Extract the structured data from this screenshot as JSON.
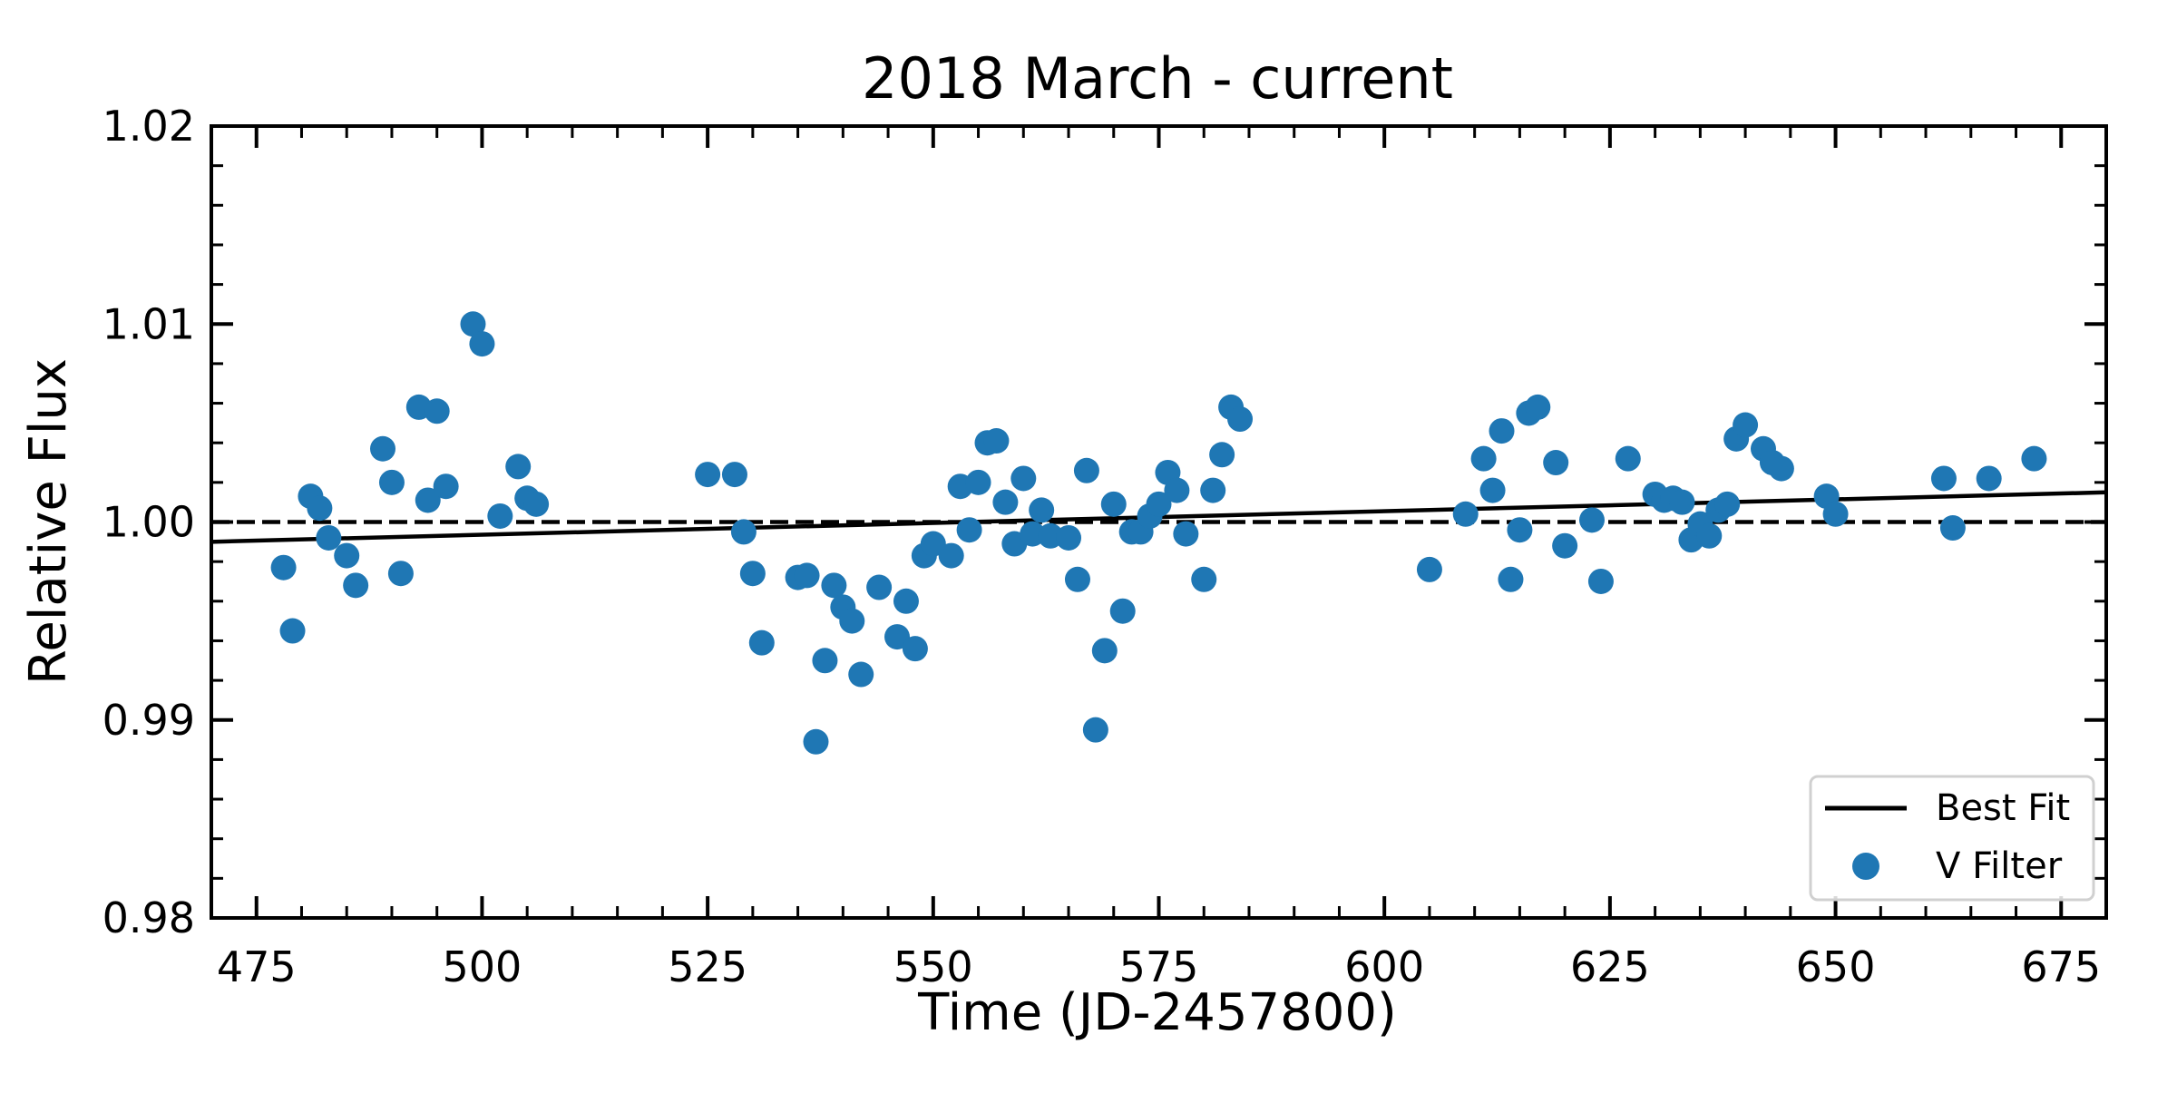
{
  "chart_data": {
    "type": "scatter",
    "title": "2018 March - current",
    "xlabel": "Time (JD-2457800)",
    "ylabel": "Relative Flux",
    "xlim": [
      470,
      680
    ],
    "ylim": [
      0.98,
      1.02
    ],
    "xticks": [
      475,
      500,
      525,
      550,
      575,
      600,
      625,
      650,
      675
    ],
    "xtick_labels": [
      "475",
      "500",
      "525",
      "550",
      "575",
      "600",
      "625",
      "650",
      "675"
    ],
    "yticks": [
      0.98,
      0.99,
      1.0,
      1.01,
      1.02
    ],
    "ytick_labels": [
      "0.98",
      "0.99",
      "1.00",
      "1.01",
      "1.02"
    ],
    "grid": false,
    "legend_position": "bottom-right",
    "reference_line": {
      "y": 1.0,
      "style": "dashed",
      "color": "#000000"
    },
    "series": [
      {
        "name": "Best Fit",
        "kind": "line",
        "color": "#000000",
        "x": [
          470,
          680
        ],
        "y": [
          0.999,
          1.0015
        ]
      },
      {
        "name": "V Filter",
        "kind": "scatter",
        "color": "#1f77b4",
        "points": [
          [
            478,
            0.9977
          ],
          [
            479,
            0.9945
          ],
          [
            481,
            1.0013
          ],
          [
            482,
            1.0007
          ],
          [
            483,
            0.9992
          ],
          [
            485,
            0.9983
          ],
          [
            486,
            0.9968
          ],
          [
            489,
            1.0037
          ],
          [
            490,
            1.002
          ],
          [
            491,
            0.9974
          ],
          [
            493,
            1.0058
          ],
          [
            494,
            1.0011
          ],
          [
            495,
            1.0056
          ],
          [
            496,
            1.0018
          ],
          [
            499,
            1.01
          ],
          [
            500,
            1.009
          ],
          [
            502,
            1.0003
          ],
          [
            504,
            1.0028
          ],
          [
            505,
            1.0012
          ],
          [
            506,
            1.0009
          ],
          [
            525,
            1.0024
          ],
          [
            528,
            1.0024
          ],
          [
            529,
            0.9995
          ],
          [
            530,
            0.9974
          ],
          [
            531,
            0.9939
          ],
          [
            535,
            0.9972
          ],
          [
            536,
            0.9973
          ],
          [
            537,
            0.9889
          ],
          [
            538,
            0.993
          ],
          [
            539,
            0.9968
          ],
          [
            540,
            0.9957
          ],
          [
            541,
            0.995
          ],
          [
            542,
            0.9923
          ],
          [
            544,
            0.9967
          ],
          [
            546,
            0.9942
          ],
          [
            547,
            0.996
          ],
          [
            548,
            0.9936
          ],
          [
            549,
            0.9983
          ],
          [
            550,
            0.9989
          ],
          [
            552,
            0.9983
          ],
          [
            553,
            1.0018
          ],
          [
            554,
            0.9996
          ],
          [
            555,
            1.002
          ],
          [
            556,
            1.004
          ],
          [
            557,
            1.0041
          ],
          [
            558,
            1.001
          ],
          [
            559,
            0.9989
          ],
          [
            560,
            1.0022
          ],
          [
            561,
            0.9994
          ],
          [
            562,
            1.0006
          ],
          [
            563,
            0.9993
          ],
          [
            565,
            0.9992
          ],
          [
            566,
            0.9971
          ],
          [
            567,
            1.0026
          ],
          [
            568,
            0.9895
          ],
          [
            569,
            0.9935
          ],
          [
            570,
            1.0009
          ],
          [
            571,
            0.9955
          ],
          [
            572,
            0.9995
          ],
          [
            573,
            0.9995
          ],
          [
            574,
            1.0003
          ],
          [
            575,
            1.0009
          ],
          [
            576,
            1.0025
          ],
          [
            577,
            1.0016
          ],
          [
            578,
            0.9994
          ],
          [
            580,
            0.9971
          ],
          [
            581,
            1.0016
          ],
          [
            582,
            1.0034
          ],
          [
            583,
            1.0058
          ],
          [
            584,
            1.0052
          ],
          [
            605,
            0.9976
          ],
          [
            609,
            1.0004
          ],
          [
            611,
            1.0032
          ],
          [
            612,
            1.0016
          ],
          [
            613,
            1.0046
          ],
          [
            614,
            0.9971
          ],
          [
            615,
            0.9996
          ],
          [
            616,
            1.0055
          ],
          [
            617,
            1.0058
          ],
          [
            619,
            1.003
          ],
          [
            620,
            0.9988
          ],
          [
            623,
            1.0001
          ],
          [
            624,
            0.997
          ],
          [
            627,
            1.0032
          ],
          [
            630,
            1.0014
          ],
          [
            631,
            1.0011
          ],
          [
            632,
            1.0012
          ],
          [
            633,
            1.001
          ],
          [
            634,
            0.9991
          ],
          [
            635,
            0.9999
          ],
          [
            636,
            0.9993
          ],
          [
            637,
            1.0006
          ],
          [
            638,
            1.0009
          ],
          [
            639,
            1.0042
          ],
          [
            640,
            1.0049
          ],
          [
            642,
            1.0037
          ],
          [
            643,
            1.003
          ],
          [
            644,
            1.0027
          ],
          [
            649,
            1.0013
          ],
          [
            650,
            1.0004
          ],
          [
            662,
            1.0022
          ],
          [
            663,
            0.9997
          ],
          [
            667,
            1.0022
          ],
          [
            672,
            1.0032
          ]
        ]
      }
    ]
  }
}
